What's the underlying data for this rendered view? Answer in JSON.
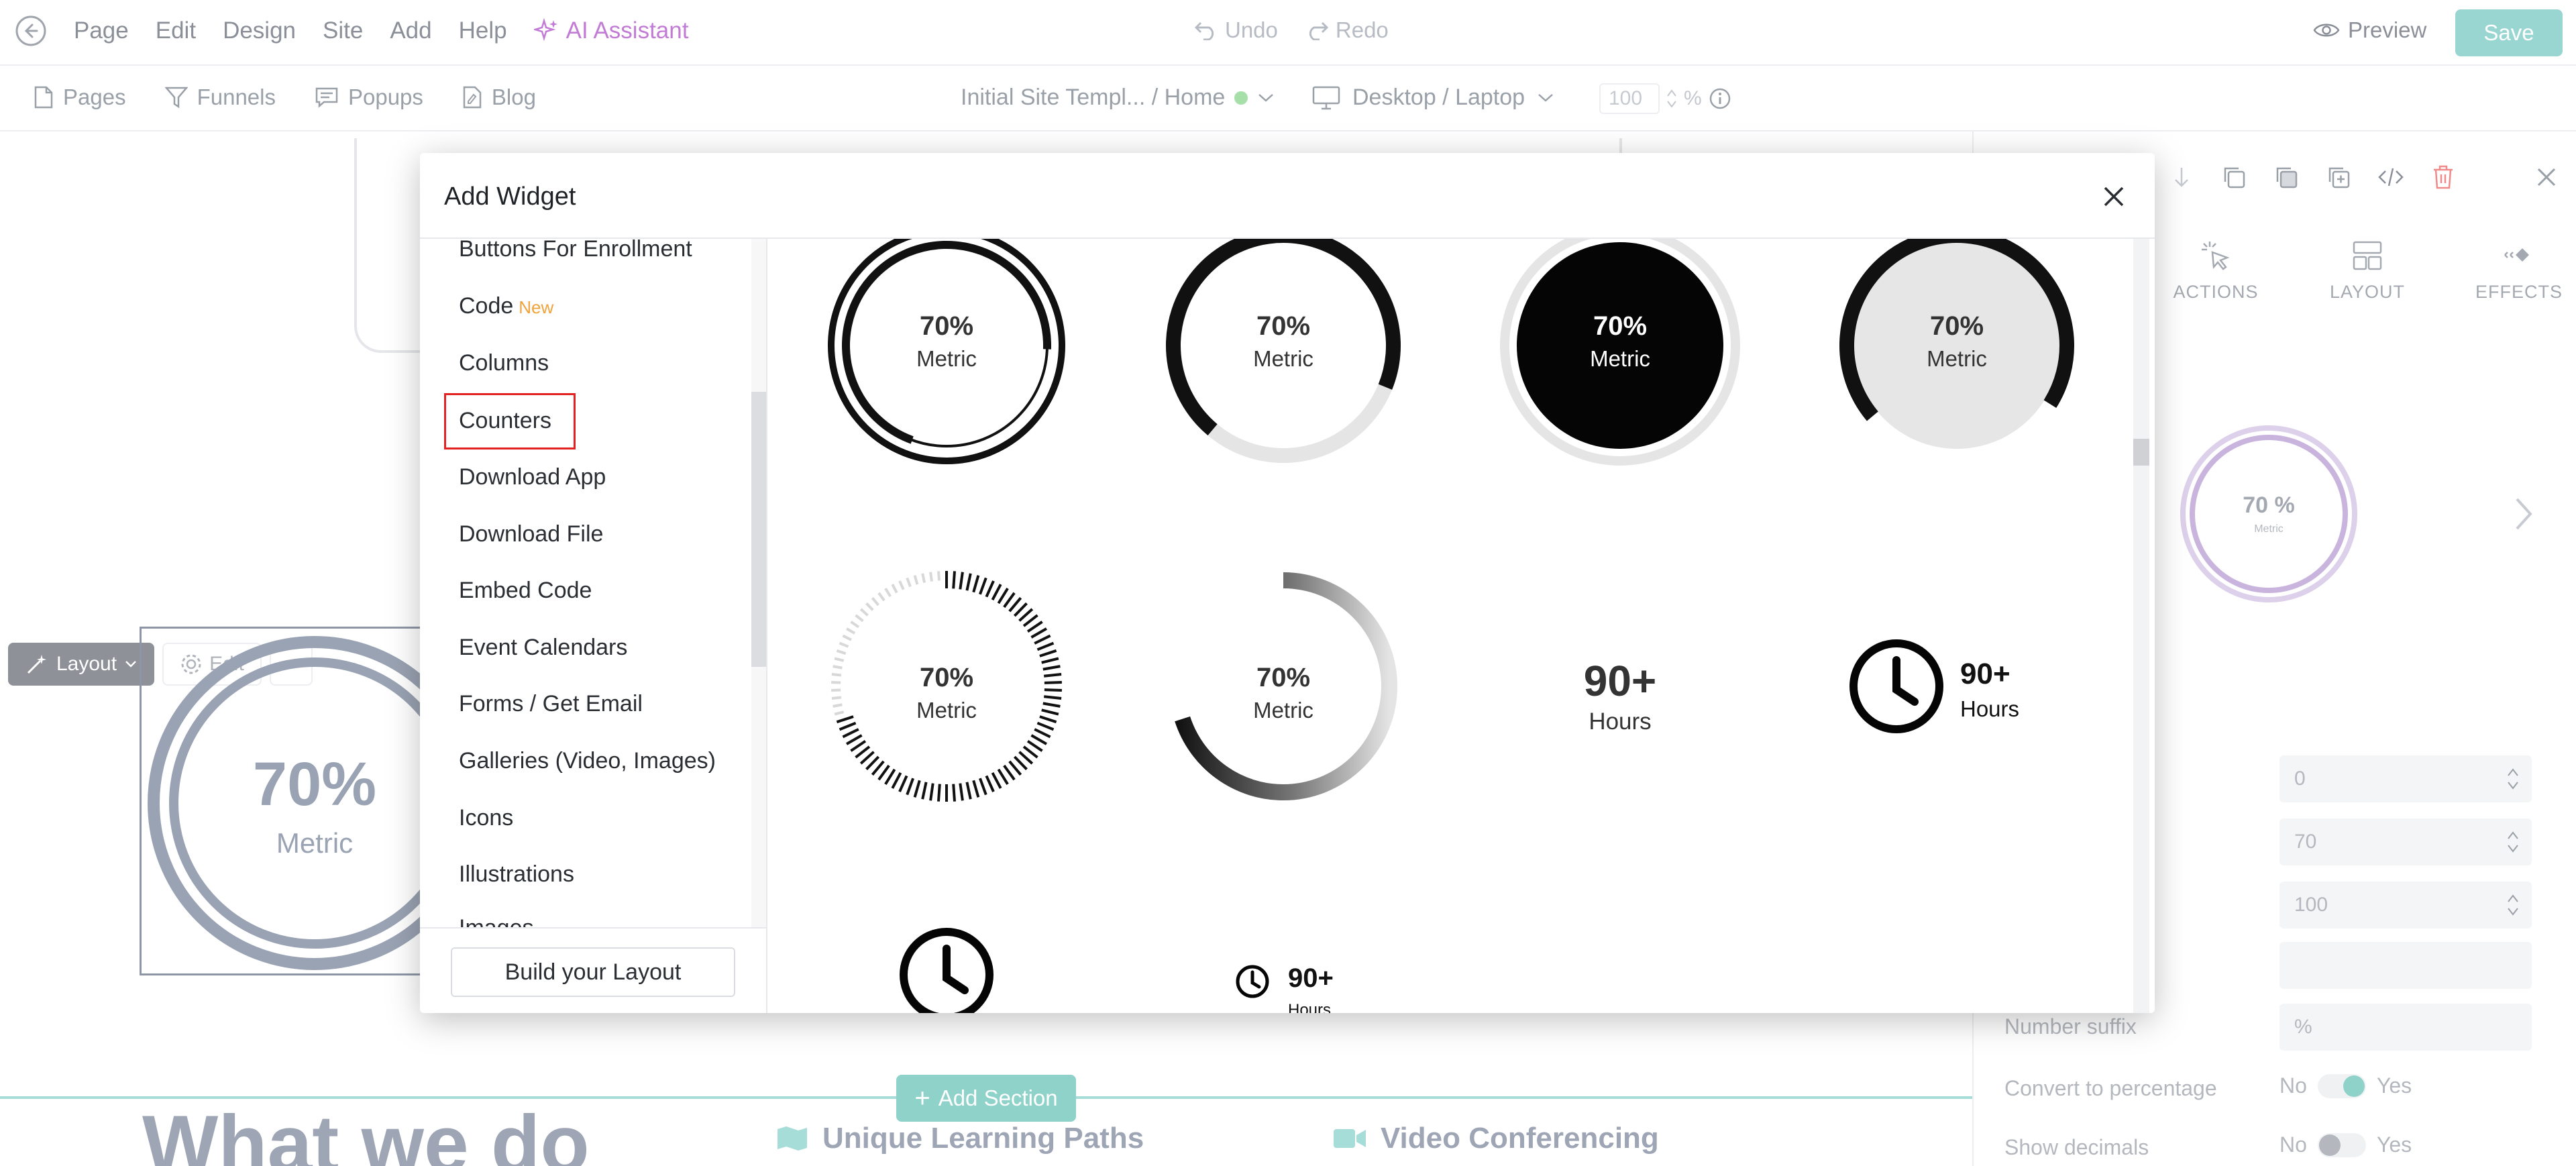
{
  "menu": {
    "items": [
      "Page",
      "Edit",
      "Design",
      "Site",
      "Add",
      "Help"
    ],
    "ai_label": "AI Assistant",
    "undo_label": "Undo",
    "redo_label": "Redo",
    "preview_label": "Preview",
    "save_label": "Save"
  },
  "subnav": {
    "items": [
      {
        "label": "Pages",
        "icon": "pages-icon"
      },
      {
        "label": "Funnels",
        "icon": "funnel-icon"
      },
      {
        "label": "Popups",
        "icon": "popup-icon"
      },
      {
        "label": "Blog",
        "icon": "blog-icon"
      }
    ],
    "site_label": "Initial Site Templ... / Home",
    "device_label": "Desktop / Laptop",
    "zoom_value": "100",
    "zoom_unit": "%"
  },
  "canvas": {
    "layout_button": "Layout",
    "edit_button": "Edit",
    "preview_percent": "70%",
    "preview_metric": "Metric",
    "add_section_label": "Add Section",
    "heading": "What we do",
    "features": [
      "Unique Learning Paths",
      "Video Conferencing"
    ]
  },
  "panel": {
    "tabs": [
      "ACTIONS",
      "LAYOUT",
      "EFFECTS"
    ],
    "preview_percent": "70 %",
    "preview_metric": "Metric",
    "fields": [
      {
        "label": "",
        "value": "0"
      },
      {
        "label": "",
        "value": "70"
      },
      {
        "label": "",
        "value": "100"
      },
      {
        "label": "",
        "value": ""
      },
      {
        "label": "Number suffix",
        "value": "%"
      }
    ],
    "convert_label": "Convert to percentage",
    "show_decimals_label": "Show decimals",
    "no_label": "No",
    "yes_label": "Yes"
  },
  "modal": {
    "title": "Add Widget",
    "categories": [
      {
        "label": "Buttons For Enrollment"
      },
      {
        "label": "Code",
        "badge": "New"
      },
      {
        "label": "Columns"
      },
      {
        "label": "Counters",
        "selected": true
      },
      {
        "label": "Download App"
      },
      {
        "label": "Download File"
      },
      {
        "label": "Embed Code"
      },
      {
        "label": "Event Calendars"
      },
      {
        "label": "Forms / Get Email"
      },
      {
        "label": "Galleries (Video, Images)"
      },
      {
        "label": "Icons"
      },
      {
        "label": "Illustrations"
      },
      {
        "label": "Images"
      }
    ],
    "build_button": "Build your Layout",
    "widgets": [
      {
        "style": "double-ring",
        "value": "70%",
        "label": "Metric",
        "progress": 0.7
      },
      {
        "style": "thick-arc",
        "value": "70%",
        "label": "Metric",
        "progress": 0.7
      },
      {
        "style": "filled-dark",
        "value": "70%",
        "label": "Metric",
        "progress": 0.7
      },
      {
        "style": "filled-light",
        "value": "70%",
        "label": "Metric",
        "progress": 0.7
      },
      {
        "style": "ticks",
        "value": "70%",
        "label": "Metric",
        "progress": 0.7
      },
      {
        "style": "gradient-arc",
        "value": "70%",
        "label": "Metric",
        "progress": 0.7
      },
      {
        "style": "plain-number",
        "value": "90+",
        "label": "Hours"
      },
      {
        "style": "clock-inline",
        "value": "90+",
        "label": "Hours"
      },
      {
        "style": "clock-big",
        "value": "",
        "label": ""
      },
      {
        "style": "clock-small",
        "value": "90+",
        "label": "Hours"
      }
    ]
  },
  "colors": {
    "accent_teal": "#99d6d2",
    "ai_purple": "#c37cd6",
    "selection_red": "#e32121",
    "new_badge": "#f0a33a"
  }
}
